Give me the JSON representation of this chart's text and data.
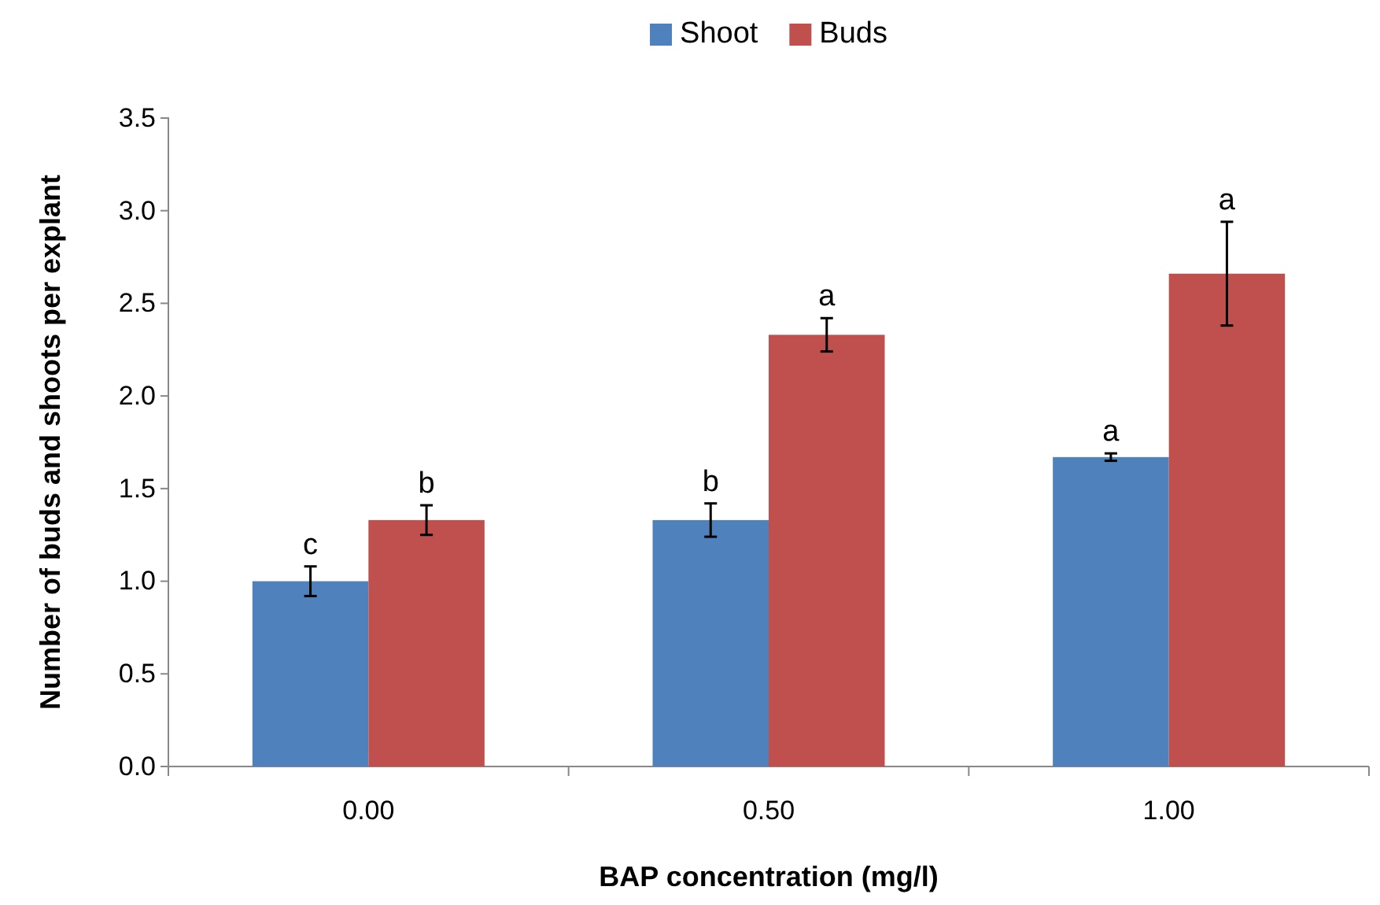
{
  "chart_data": {
    "type": "bar",
    "xlabel": "BAP concentration (mg/l)",
    "ylabel": "Number of buds and shoots per explant",
    "categories": [
      "0.00",
      "0.50",
      "1.00"
    ],
    "series": [
      {
        "name": "Shoot",
        "color": "#4f81bd",
        "values": [
          1.0,
          1.33,
          1.67
        ],
        "errors": [
          0.08,
          0.09,
          0.02
        ],
        "value_labels": [
          "c",
          "b",
          "a"
        ]
      },
      {
        "name": "Buds",
        "color": "#c0504d",
        "values": [
          1.33,
          2.33,
          2.66
        ],
        "errors": [
          0.08,
          0.09,
          0.28
        ],
        "value_labels": [
          "b",
          "a",
          "a"
        ]
      }
    ],
    "ylim": [
      0,
      3.5
    ],
    "yticks": [
      {
        "value": 0,
        "label": "0.0"
      },
      {
        "value": 0.5,
        "label": "0.5"
      },
      {
        "value": 1,
        "label": "1.0"
      },
      {
        "value": 1.5,
        "label": "1.5"
      },
      {
        "value": 2,
        "label": "2.0"
      },
      {
        "value": 2.5,
        "label": "2.5"
      },
      {
        "value": 3,
        "label": "3.0"
      },
      {
        "value": 3.5,
        "label": "3.5"
      }
    ],
    "grid": false,
    "legend": "top"
  }
}
